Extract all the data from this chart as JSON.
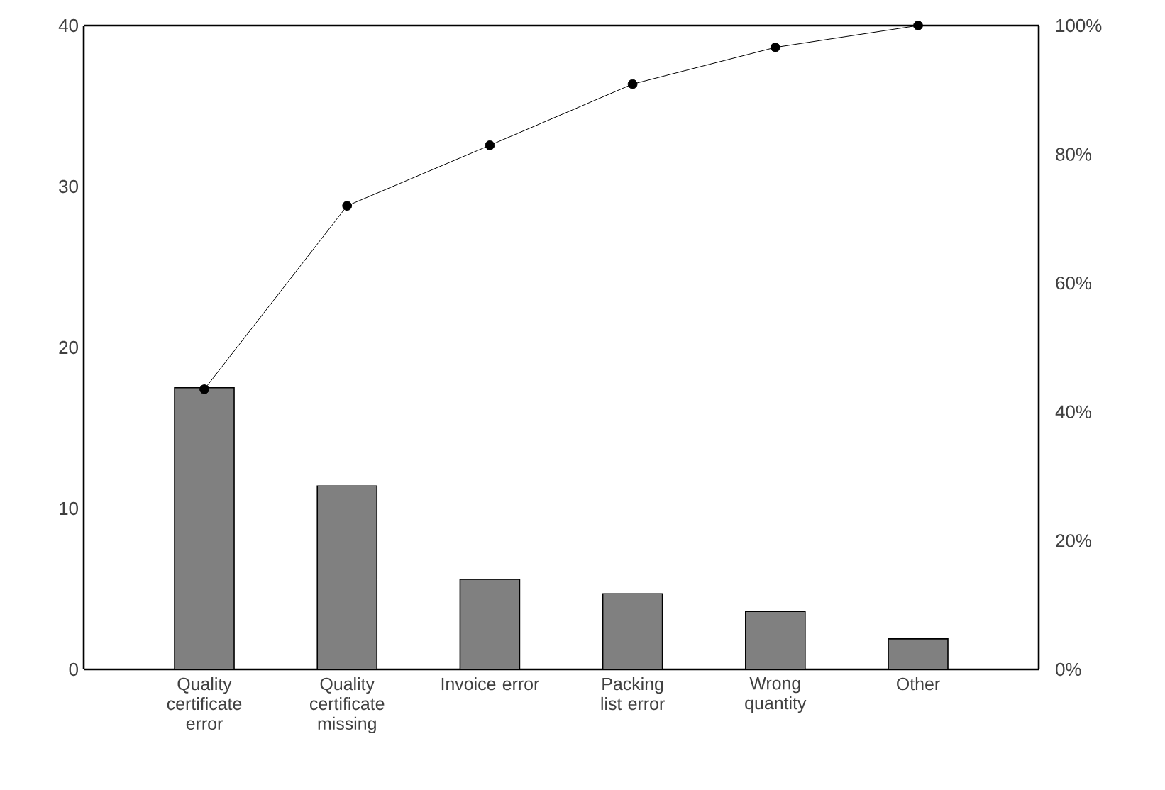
{
  "chart_data": {
    "type": "bar",
    "categories": [
      "Quality certificate error",
      "Quality certificate missing",
      "Invoice error",
      "Packing list error",
      "Wrong quantity",
      "Other"
    ],
    "series": [
      {
        "color": "#808080",
        "values": [
          17.5,
          11.4,
          5.6,
          4.7,
          3.6,
          1.9
        ]
      },
      {
        "type": "line",
        "axis": "y2",
        "color": "#000000",
        "marker": "circle",
        "values": [
          43.5,
          72,
          81.4,
          90.9,
          96.6,
          100
        ]
      }
    ],
    "ylim": [
      0,
      40
    ],
    "yticks": [
      0,
      10,
      20,
      30,
      40
    ],
    "y2lim": [
      0,
      100
    ],
    "y2ticks": [
      {
        "value": 0,
        "label": "0%"
      },
      {
        "value": 20,
        "label": "20%"
      },
      {
        "value": 40,
        "label": "40%"
      },
      {
        "value": 60,
        "label": "60%"
      },
      {
        "value": 80,
        "label": "80%"
      },
      {
        "value": 100,
        "label": "100%"
      }
    ],
    "grid": false,
    "legend": false
  }
}
